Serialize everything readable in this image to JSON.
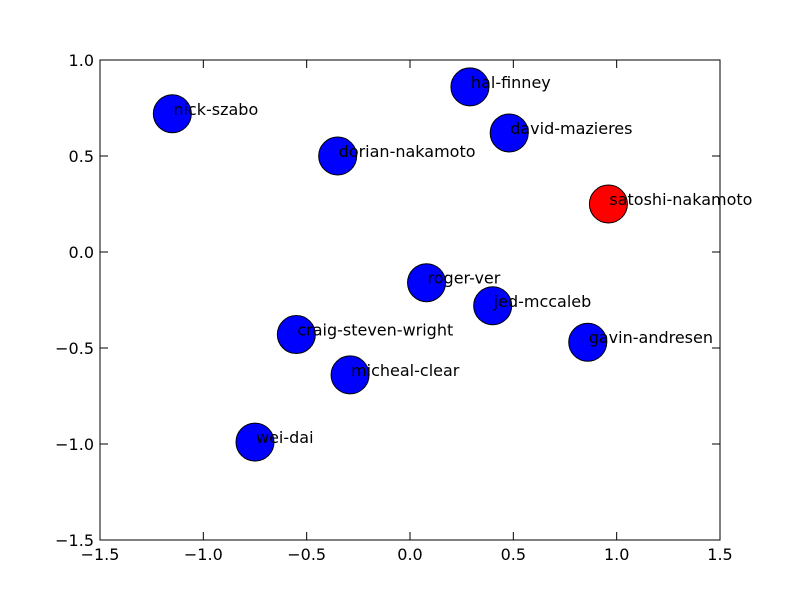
{
  "chart_data": {
    "type": "scatter",
    "title": "",
    "xlabel": "",
    "ylabel": "",
    "xlim": [
      -1.5,
      1.5
    ],
    "ylim": [
      -1.5,
      1.0
    ],
    "grid": false,
    "x_ticks": [
      -1.5,
      -1.0,
      -0.5,
      0.0,
      0.5,
      1.0,
      1.5
    ],
    "x_tick_labels": [
      "−1.5",
      "−1.0",
      "−0.5",
      "0.0",
      "0.5",
      "1.0",
      "1.5"
    ],
    "y_ticks": [
      -1.5,
      -1.0,
      -0.5,
      0.0,
      0.5,
      1.0
    ],
    "y_tick_labels": [
      "−1.5",
      "−1.0",
      "−0.5",
      "0.0",
      "0.5",
      "1.0"
    ],
    "points": [
      {
        "label": "nick-szabo",
        "x": -1.15,
        "y": 0.72,
        "color": "#0000ff"
      },
      {
        "label": "hal-finney",
        "x": 0.29,
        "y": 0.86,
        "color": "#0000ff"
      },
      {
        "label": "david-mazieres",
        "x": 0.48,
        "y": 0.62,
        "color": "#0000ff"
      },
      {
        "label": "dorian-nakamoto",
        "x": -0.35,
        "y": 0.5,
        "color": "#0000ff"
      },
      {
        "label": "satoshi-nakamoto",
        "x": 0.96,
        "y": 0.25,
        "color": "#ff0000"
      },
      {
        "label": "roger-ver",
        "x": 0.08,
        "y": -0.16,
        "color": "#0000ff"
      },
      {
        "label": "jed-mccaleb",
        "x": 0.4,
        "y": -0.28,
        "color": "#0000ff"
      },
      {
        "label": "craig-steven-wright",
        "x": -0.55,
        "y": -0.43,
        "color": "#0000ff"
      },
      {
        "label": "gavin-andresen",
        "x": 0.86,
        "y": -0.47,
        "color": "#0000ff"
      },
      {
        "label": "micheal-clear",
        "x": -0.29,
        "y": -0.64,
        "color": "#0000ff"
      },
      {
        "label": "wei-dai",
        "x": -0.75,
        "y": -0.99,
        "color": "#0000ff"
      }
    ]
  }
}
